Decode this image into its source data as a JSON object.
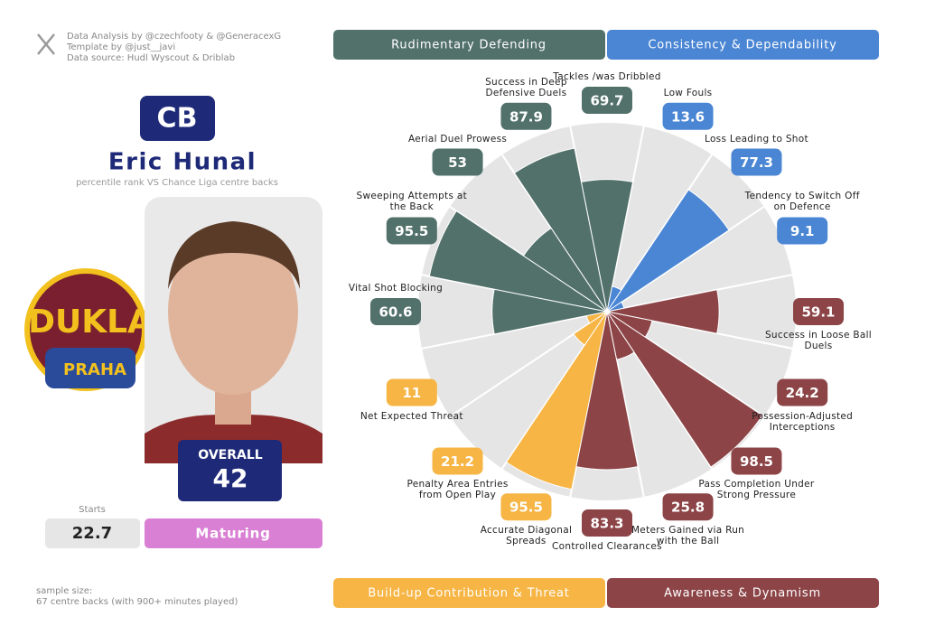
{
  "header": {
    "credits": [
      "Data Analysis by @czechfooty & @GeneracexG",
      "Template by @just__javi",
      "Data source: Hudl Wyscout & Driblab"
    ]
  },
  "player": {
    "position": "CB",
    "name": "Eric Hunal",
    "subtitle": "percentile rank VS Chance Liga centre backs",
    "club": [
      "DUKLA",
      "PRAHA"
    ],
    "overall_label": "OVERALL",
    "overall": 42,
    "starts_label": "Starts",
    "starts": 22.7,
    "status": "Maturing"
  },
  "footer": {
    "sample": [
      "sample size:",
      "67 centre backs (with 900+ minutes played)"
    ]
  },
  "chart_data": {
    "type": "pizza",
    "categories": [
      "Tackles /was Dribbled",
      "Low Fouls",
      "Loss Leading to Shot",
      "Tendency to Switch Off on Defence",
      "Success in Loose Ball Duels",
      "Possession-Adjusted Interceptions",
      "Pass Completion Under Strong Pressure",
      "Meters Gained via Run with the Ball",
      "Controlled Clearances",
      "Accurate Diagonal Spreads",
      "Penalty Area Entries from Open Play",
      "Net Expected Threat",
      "Vital Shot Blocking",
      "Sweeping Attempts at the Back",
      "Aerial Duel Prowess",
      "Success in Deep Defensive Duels"
    ],
    "values": [
      69.7,
      13.6,
      77.3,
      9.1,
      59.1,
      24.2,
      98.5,
      25.8,
      83.3,
      95.5,
      21.2,
      11,
      60.6,
      95.5,
      53,
      87.9
    ],
    "colors": [
      "#52716a",
      "#4a86d4",
      "#4a86d4",
      "#4a86d4",
      "#8c4447",
      "#8c4447",
      "#8c4447",
      "#8c4447",
      "#8c4447",
      "#f6b544",
      "#f6b544",
      "#f6b544",
      "#52716a",
      "#52716a",
      "#52716a",
      "#52716a"
    ],
    "ylim": [
      0,
      100
    ],
    "legend": [
      {
        "name": "Rudimentary Defending",
        "color": "#52716a"
      },
      {
        "name": "Consistency & Dependability",
        "color": "#4a86d4"
      },
      {
        "name": "Build-up Contribution & Threat",
        "color": "#f6b544"
      },
      {
        "name": "Awareness & Dynamism",
        "color": "#8c4447"
      }
    ]
  }
}
